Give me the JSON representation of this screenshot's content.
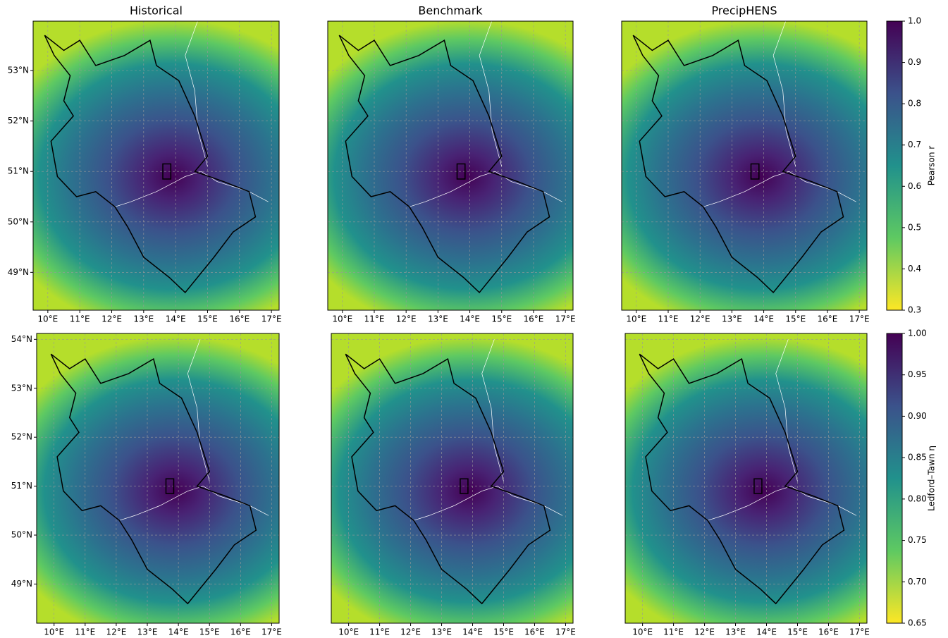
{
  "chart_data": [
    {
      "type": "heatmap",
      "title": "Historical",
      "xlim": [
        9.54,
        17.24
      ],
      "ylim": [
        48.25,
        53.98
      ],
      "xticks": [
        {
          "value": 10,
          "label": "10°E"
        },
        {
          "value": 11,
          "label": "11°E"
        },
        {
          "value": 12,
          "label": "12°E"
        },
        {
          "value": 13,
          "label": "13°E"
        },
        {
          "value": 14,
          "label": "14°E"
        },
        {
          "value": 15,
          "label": "15°E"
        },
        {
          "value": 16,
          "label": "16°E"
        },
        {
          "value": 17,
          "label": "17°E"
        }
      ],
      "yticks": [
        {
          "value": 49,
          "label": "49°N"
        },
        {
          "value": 50,
          "label": "50°N"
        },
        {
          "value": 51,
          "label": "51°N"
        },
        {
          "value": 52,
          "label": "52°N"
        },
        {
          "value": 53,
          "label": "53°N"
        }
      ]
    },
    {
      "type": "heatmap",
      "title": "Benchmark",
      "xlim": [
        9.54,
        17.24
      ],
      "ylim": [
        48.25,
        53.98
      ],
      "xticks": [
        {
          "value": 10,
          "label": "10°E"
        },
        {
          "value": 11,
          "label": "11°E"
        },
        {
          "value": 12,
          "label": "12°E"
        },
        {
          "value": 13,
          "label": "13°E"
        },
        {
          "value": 14,
          "label": "14°E"
        },
        {
          "value": 15,
          "label": "15°E"
        },
        {
          "value": 16,
          "label": "16°E"
        },
        {
          "value": 17,
          "label": "17°E"
        }
      ]
    },
    {
      "type": "heatmap",
      "title": "PrecipHENS",
      "xlim": [
        9.54,
        17.24
      ],
      "ylim": [
        48.25,
        53.98
      ],
      "xticks": [
        {
          "value": 10,
          "label": "10°E"
        },
        {
          "value": 11,
          "label": "11°E"
        },
        {
          "value": 12,
          "label": "12°E"
        },
        {
          "value": 13,
          "label": "13°E"
        },
        {
          "value": 14,
          "label": "14°E"
        },
        {
          "value": 15,
          "label": "15°E"
        },
        {
          "value": 16,
          "label": "16°E"
        },
        {
          "value": 17,
          "label": "17°E"
        }
      ]
    },
    {
      "type": "heatmap",
      "xlim": [
        9.44,
        17.24
      ],
      "ylim": [
        48.2,
        54.12
      ],
      "xticks": [
        {
          "value": 10,
          "label": "10°E"
        },
        {
          "value": 11,
          "label": "11°E"
        },
        {
          "value": 12,
          "label": "12°E"
        },
        {
          "value": 13,
          "label": "13°E"
        },
        {
          "value": 14,
          "label": "14°E"
        },
        {
          "value": 15,
          "label": "15°E"
        },
        {
          "value": 16,
          "label": "16°E"
        },
        {
          "value": 17,
          "label": "17°E"
        }
      ],
      "yticks": [
        {
          "value": 49,
          "label": "49°N"
        },
        {
          "value": 50,
          "label": "50°N"
        },
        {
          "value": 51,
          "label": "51°N"
        },
        {
          "value": 52,
          "label": "52°N"
        },
        {
          "value": 53,
          "label": "53°N"
        },
        {
          "value": 54,
          "label": "54°N"
        }
      ]
    },
    {
      "type": "heatmap",
      "xlim": [
        9.44,
        17.24
      ],
      "ylim": [
        48.2,
        54.12
      ],
      "xticks": [
        {
          "value": 10,
          "label": "10°E"
        },
        {
          "value": 11,
          "label": "11°E"
        },
        {
          "value": 12,
          "label": "12°E"
        },
        {
          "value": 13,
          "label": "13°E"
        },
        {
          "value": 14,
          "label": "14°E"
        },
        {
          "value": 15,
          "label": "15°E"
        },
        {
          "value": 16,
          "label": "16°E"
        },
        {
          "value": 17,
          "label": "17°E"
        }
      ]
    },
    {
      "type": "heatmap",
      "xlim": [
        9.44,
        17.24
      ],
      "ylim": [
        48.2,
        54.12
      ],
      "xticks": [
        {
          "value": 10,
          "label": "10°E"
        },
        {
          "value": 11,
          "label": "11°E"
        },
        {
          "value": 12,
          "label": "12°E"
        },
        {
          "value": 13,
          "label": "13°E"
        },
        {
          "value": 14,
          "label": "14°E"
        },
        {
          "value": 15,
          "label": "15°E"
        },
        {
          "value": 16,
          "label": "16°E"
        },
        {
          "value": 17,
          "label": "17°E"
        }
      ]
    },
    {
      "type": "colorbar",
      "label": "Pearson r",
      "ylim": [
        0.3,
        1.0
      ],
      "yticks": [
        0.3,
        0.4,
        0.5,
        0.6,
        0.7,
        0.8,
        0.9,
        {
          "value": 1,
          "label": "1.0"
        }
      ]
    },
    {
      "type": "colorbar",
      "label": "Ledford–Tawn η",
      "ylim": [
        0.65,
        1.0
      ],
      "yticks": [
        0.65,
        {
          "value": 0.7,
          "label": "0.70"
        },
        0.75,
        {
          "value": 0.8,
          "label": "0.80"
        },
        0.85,
        {
          "value": 0.9,
          "label": "0.90"
        },
        0.95,
        {
          "value": 1,
          "label": "1.00"
        }
      ]
    }
  ]
}
